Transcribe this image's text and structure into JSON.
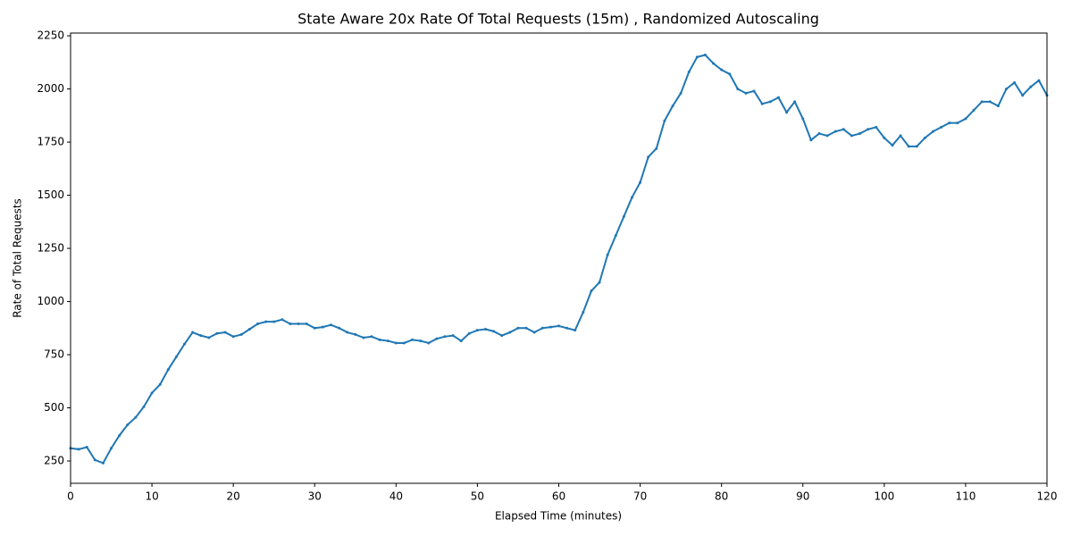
{
  "chart_data": {
    "type": "line",
    "title": "State Aware 20x Rate Of Total Requests (15m) , Randomized Autoscaling",
    "x_label": "Elapsed Time (minutes)",
    "y_label": "Rate of Total Requests",
    "x": [
      0,
      1,
      2,
      3,
      4,
      5,
      6,
      7,
      8,
      9,
      10,
      11,
      12,
      13,
      14,
      15,
      16,
      17,
      18,
      19,
      20,
      21,
      22,
      23,
      24,
      25,
      26,
      27,
      28,
      29,
      30,
      31,
      32,
      33,
      34,
      35,
      36,
      37,
      38,
      39,
      40,
      41,
      42,
      43,
      44,
      45,
      46,
      47,
      48,
      49,
      50,
      51,
      52,
      53,
      54,
      55,
      56,
      57,
      58,
      59,
      60,
      61,
      62,
      63,
      64,
      65,
      66,
      67,
      68,
      69,
      70,
      71,
      72,
      73,
      74,
      75,
      76,
      77,
      78,
      79,
      80,
      81,
      82,
      83,
      84,
      85,
      86,
      87,
      88,
      89,
      90,
      91,
      92,
      93,
      94,
      95,
      96,
      97,
      98,
      99,
      100,
      101,
      102,
      103,
      104,
      105,
      106,
      107,
      108,
      109,
      110,
      111,
      112,
      113,
      114,
      115,
      116,
      117,
      118,
      119,
      120
    ],
    "series": [
      {
        "name": "Rate of Total Requests",
        "color": "#1f77b4",
        "values": [
          310,
          305,
          315,
          255,
          240,
          310,
          370,
          420,
          455,
          505,
          570,
          610,
          680,
          740,
          800,
          855,
          840,
          830,
          850,
          855,
          835,
          845,
          870,
          895,
          905,
          905,
          915,
          895,
          895,
          895,
          875,
          880,
          890,
          875,
          855,
          845,
          830,
          835,
          820,
          815,
          805,
          805,
          820,
          815,
          805,
          825,
          835,
          840,
          815,
          850,
          865,
          870,
          860,
          840,
          855,
          875,
          875,
          855,
          875,
          880,
          885,
          875,
          865,
          950,
          1050,
          1090,
          1220,
          1310,
          1400,
          1490,
          1560,
          1680,
          1720,
          1850,
          1920,
          1980,
          2080,
          2150,
          2160,
          2120,
          2090,
          2070,
          2000,
          1980,
          1990,
          1930,
          1940,
          1960,
          1890,
          1940,
          1860,
          1760,
          1790,
          1780,
          1800,
          1810,
          1780,
          1790,
          1810,
          1820,
          1770,
          1735,
          1780,
          1730,
          1730,
          1770,
          1800,
          1820,
          1840,
          1840,
          1860,
          1900,
          1940,
          1940,
          1920,
          2000,
          2030,
          1970,
          2010,
          2040,
          1970
        ]
      }
    ],
    "xlim": [
      0,
      120
    ],
    "xticks": [
      0,
      10,
      20,
      30,
      40,
      50,
      60,
      70,
      80,
      90,
      100,
      110,
      120
    ],
    "ylim": [
      145,
      2263
    ],
    "yticks": [
      250,
      500,
      750,
      1000,
      1250,
      1500,
      1750,
      2000,
      2250
    ],
    "grid": false
  }
}
